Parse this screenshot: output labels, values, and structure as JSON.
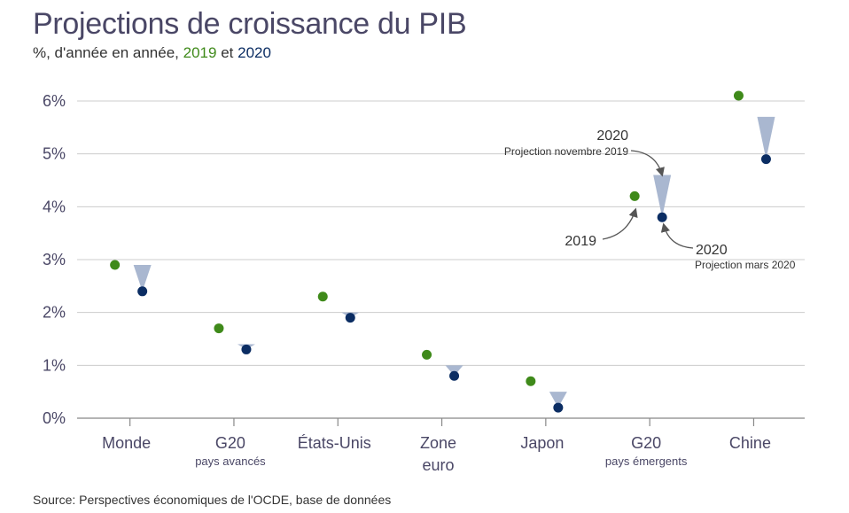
{
  "title": "Projections de croissance du PIB",
  "subtitle": {
    "prefix": "%, d'année en année,",
    "year1": "2019",
    "conj": "et",
    "year2": "2020"
  },
  "source": "Source: Perspectives économiques de l'OCDE, base de données",
  "colors": {
    "series_2019": "#3f8a1a",
    "series_2020": "#0b2d63",
    "projection_marker": "#a9b7d0",
    "grid": "#cccccc"
  },
  "chart_data": {
    "type": "scatter",
    "title": "Projections de croissance du PIB",
    "ylabel": "%, d'année en année",
    "ylim": [
      0,
      6
    ],
    "yticks": [
      "0%",
      "1%",
      "2%",
      "3%",
      "4%",
      "5%",
      "6%"
    ],
    "grid": true,
    "categories": [
      {
        "label": "Monde",
        "sublabel": ""
      },
      {
        "label": "G20",
        "sublabel": "pays avancés"
      },
      {
        "label": "États-Unis",
        "sublabel": ""
      },
      {
        "label": "Zone",
        "label2": "euro",
        "sublabel": ""
      },
      {
        "label": "Japon",
        "sublabel": ""
      },
      {
        "label": "G20",
        "sublabel": "pays émergents"
      },
      {
        "label": "Chine",
        "sublabel": ""
      }
    ],
    "series": [
      {
        "name": "2019",
        "values": [
          2.9,
          1.7,
          2.3,
          1.2,
          0.7,
          4.2,
          6.1
        ]
      },
      {
        "name": "2020 Projection mars 2020",
        "values": [
          2.4,
          1.3,
          1.9,
          0.8,
          0.2,
          3.8,
          4.9
        ]
      },
      {
        "name": "2020 Projection novembre 2019",
        "values": [
          2.9,
          1.4,
          2.0,
          1.0,
          0.5,
          4.6,
          5.7
        ]
      }
    ],
    "annotations": {
      "nov_year": "2020",
      "nov_text": "Projection novembre 2019",
      "y2019": "2019",
      "mar_year": "2020",
      "mar_text": "Projection mars 2020"
    }
  }
}
